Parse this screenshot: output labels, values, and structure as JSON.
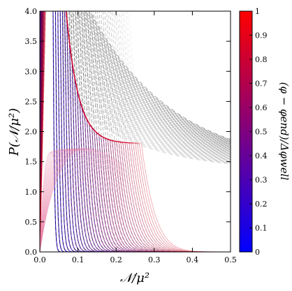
{
  "chart_data": [
    {
      "type": "line",
      "xlabel": "𝒩/μ²",
      "ylabel": "P(𝒩/μ²)",
      "xlim": [
        0.0,
        0.5
      ],
      "ylim": [
        0.0,
        4.0
      ],
      "xticks": [
        "0.0",
        "0.1",
        "0.2",
        "0.3",
        "0.4",
        "0.5"
      ],
      "yticks": [
        "0.0",
        "0.5",
        "1.0",
        "1.5",
        "2.0",
        "2.5",
        "3.0",
        "3.5",
        "4.0"
      ],
      "grid": false,
      "curve_family": {
        "description_of_encoding": "colored curves coloured by (φ−φend)/Δφwell from blue (0) to red (1); black dashed curves overlay",
        "count": 40,
        "scale_parameter_range": [
          0.01,
          0.09
        ]
      },
      "overlay_dashed": {
        "color": "#000000"
      },
      "light_dashed": {
        "color": "#808080"
      }
    },
    {
      "type": "heatmap",
      "colorbar": true,
      "label": "(φ − φend)/Δφwell",
      "range": [
        0,
        1
      ],
      "ticks": [
        "0",
        "0.1",
        "0.2",
        "0.3",
        "0.4",
        "0.5",
        "0.6",
        "0.7",
        "0.8",
        "0.9",
        "1"
      ],
      "colormap": [
        "#0000ff",
        "#ff0000"
      ]
    }
  ]
}
